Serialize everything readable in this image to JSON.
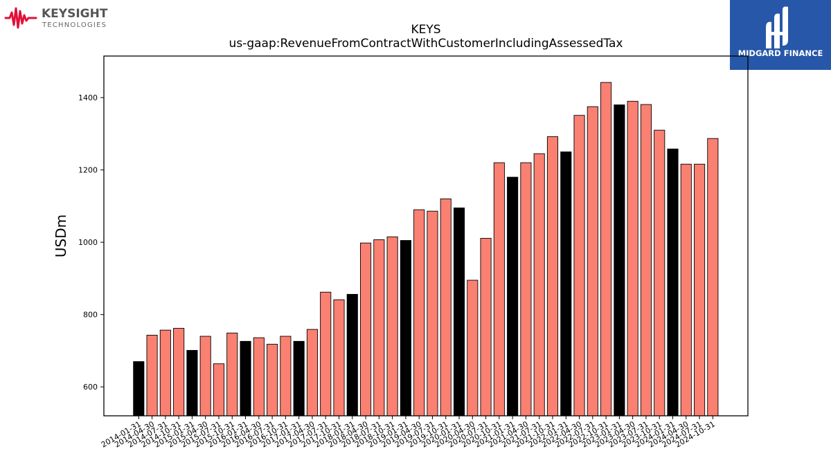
{
  "logos": {
    "left": {
      "name": "KEYSIGHT",
      "sub": "TECHNOLOGIES",
      "accent": "#e0103a",
      "text_color": "#555555"
    },
    "right": {
      "name": "MIDGARD FINANCE",
      "bg": "#2757a8",
      "fg": "#ffffff"
    }
  },
  "chart_data": {
    "type": "bar",
    "title": "KEYS",
    "subtitle": "us-gaap:RevenueFromContractWithCustomerIncludingAssessedTax",
    "xlabel": "",
    "ylabel": "USDm",
    "ylim": [
      520,
      1515
    ],
    "yticks": [
      600,
      800,
      1000,
      1200,
      1400
    ],
    "grid": false,
    "colors": {
      "quarter": "#fa8072",
      "fiscal_q4": "#000000"
    },
    "categories": [
      "2014-01-31",
      "2014-04-30",
      "2014-07-31",
      "2014-10-31",
      "2015-01-31",
      "2015-04-30",
      "2015-07-31",
      "2015-10-31",
      "2016-01-31",
      "2016-04-30",
      "2016-07-31",
      "2016-10-31",
      "2017-01-31",
      "2017-04-30",
      "2017-07-31",
      "2017-10-31",
      "2018-01-31",
      "2018-04-30",
      "2018-07-31",
      "2018-10-31",
      "2019-01-31",
      "2019-04-30",
      "2019-07-31",
      "2019-10-31",
      "2020-01-31",
      "2020-04-30",
      "2020-07-31",
      "2020-10-31",
      "2021-01-31",
      "2021-04-30",
      "2021-07-31",
      "2021-10-31",
      "2022-01-31",
      "2022-04-30",
      "2022-07-31",
      "2022-10-31",
      "2023-01-31",
      "2023-04-30",
      "2023-07-31",
      "2023-10-31",
      "2024-01-31",
      "2024-04-30",
      "2024-07-31",
      "2024-10-31"
    ],
    "values": [
      670,
      743,
      757,
      762,
      701,
      740,
      664,
      749,
      726,
      736,
      718,
      740,
      726,
      759,
      862,
      841,
      856,
      998,
      1007,
      1015,
      1005,
      1090,
      1086,
      1120,
      1095,
      895,
      1011,
      1220,
      1180,
      1220,
      1245,
      1292,
      1250,
      1351,
      1375,
      1442,
      1380,
      1390,
      1381,
      1310,
      1258,
      1216,
      1216,
      1287
    ],
    "highlight": [
      true,
      false,
      false,
      false,
      true,
      false,
      false,
      false,
      true,
      false,
      false,
      false,
      true,
      false,
      false,
      false,
      true,
      false,
      false,
      false,
      true,
      false,
      false,
      false,
      true,
      false,
      false,
      false,
      true,
      false,
      false,
      false,
      true,
      false,
      false,
      false,
      true,
      false,
      false,
      false,
      true,
      false,
      false,
      false
    ]
  }
}
